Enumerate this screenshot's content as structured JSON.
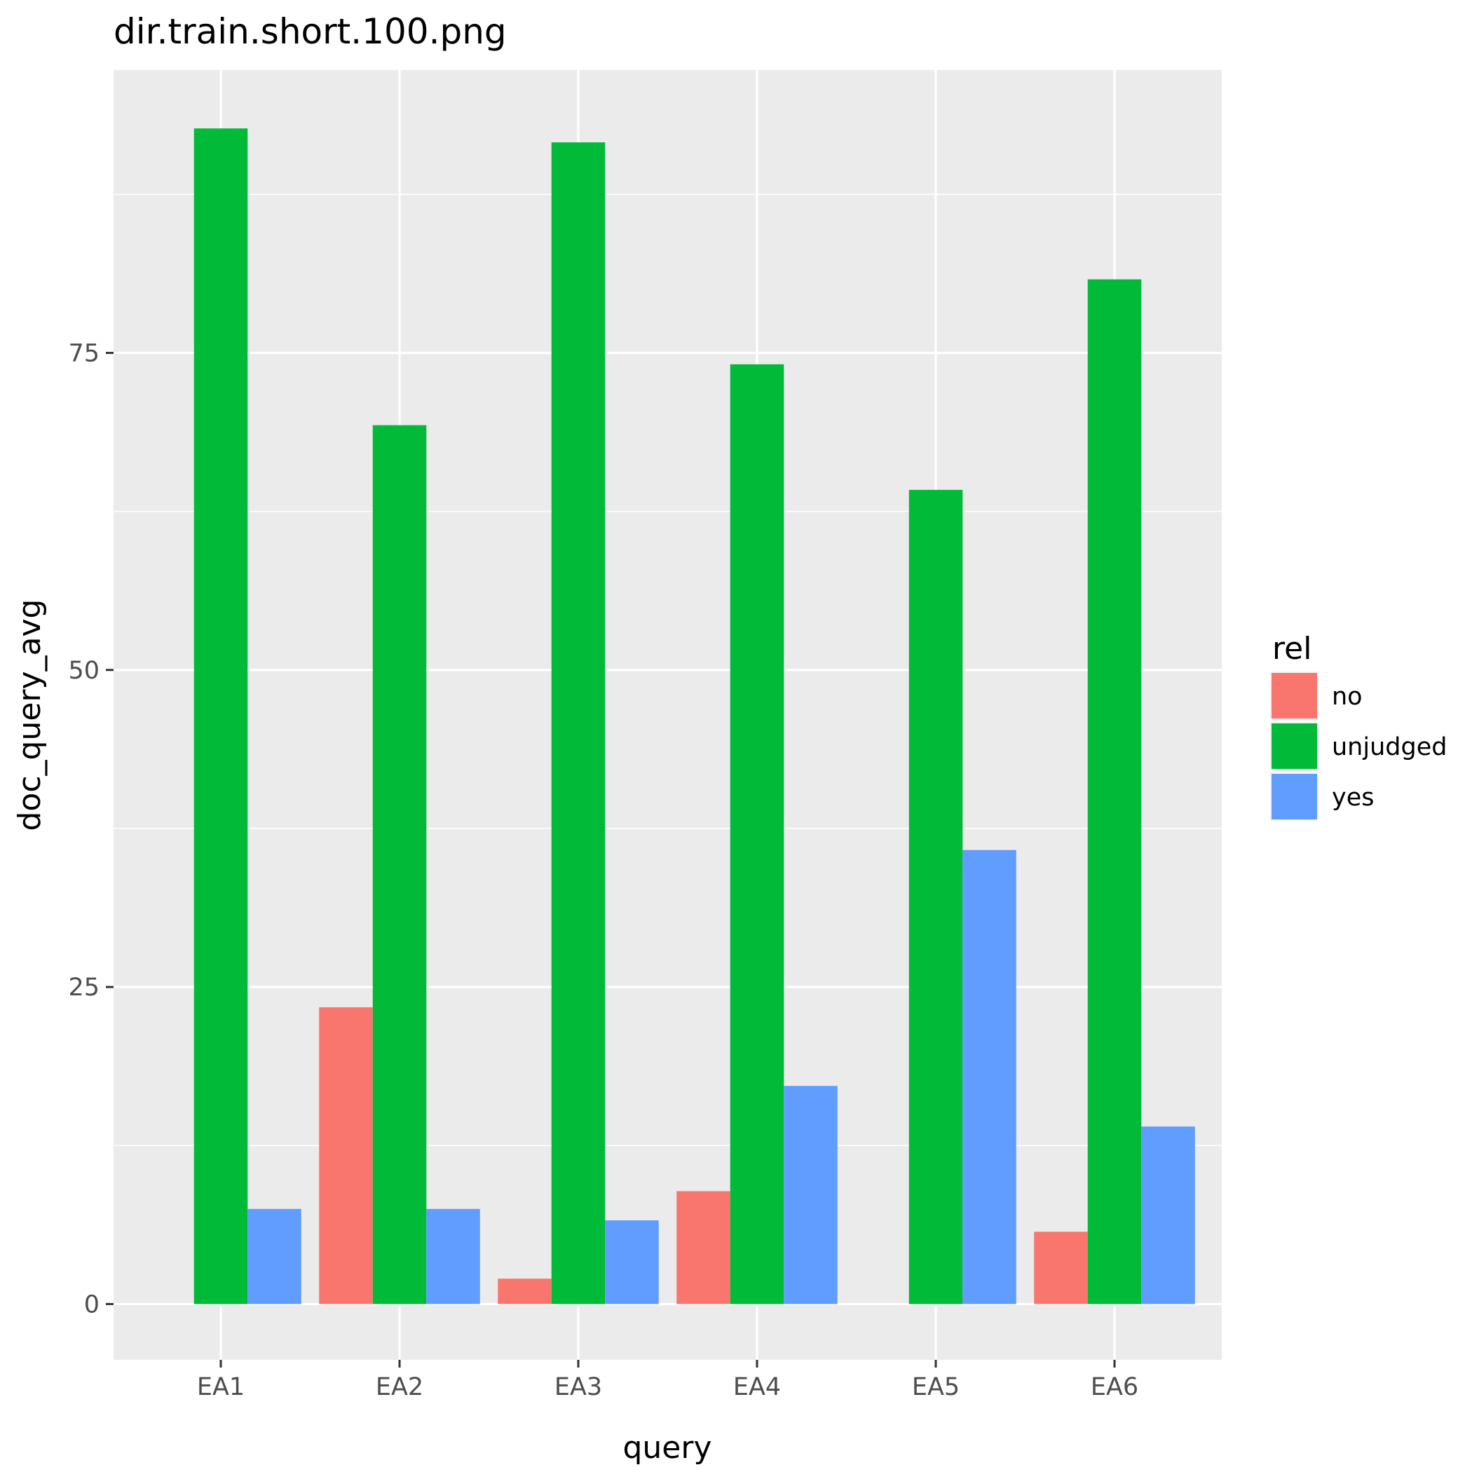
{
  "chart_data": {
    "type": "bar",
    "title": "dir.train.short.100.png",
    "xlabel": "query",
    "ylabel": "doc_query_avg",
    "categories": [
      "EA1",
      "EA2",
      "EA3",
      "EA4",
      "EA5",
      "EA6"
    ],
    "series": [
      {
        "name": "no",
        "color": "#F8766D",
        "values": [
          0,
          23.4,
          2.0,
          8.9,
          0,
          5.7
        ]
      },
      {
        "name": "unjudged",
        "color": "#00BA38",
        "values": [
          92.7,
          69.3,
          91.6,
          74.1,
          64.2,
          80.8
        ]
      },
      {
        "name": "yes",
        "color": "#619CFF",
        "values": [
          7.5,
          7.5,
          6.6,
          17.2,
          35.8,
          14.0
        ]
      }
    ],
    "ylim": [
      -4.4,
      97.3
    ],
    "yticks": [
      0,
      25,
      50,
      75
    ],
    "yticklabels": [
      "0",
      "25",
      "50",
      "75"
    ],
    "legend": {
      "title": "rel",
      "placement": "right"
    },
    "grid": true,
    "background": "#EBEBEB"
  }
}
